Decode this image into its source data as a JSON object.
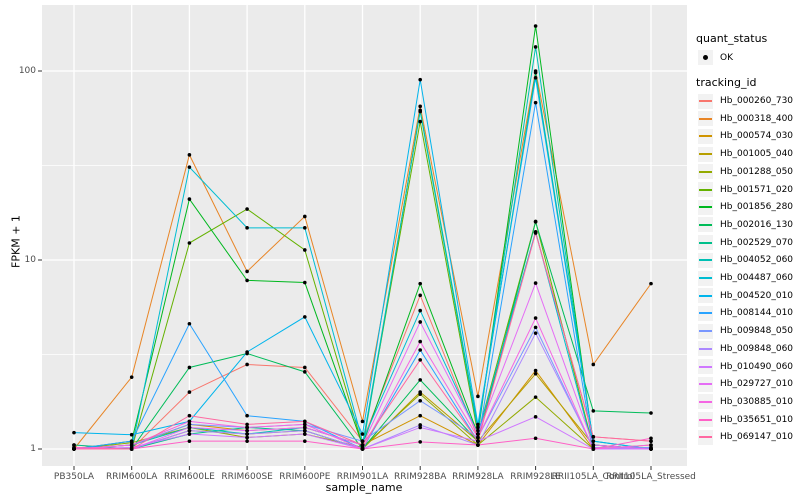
{
  "figure": {
    "y_axis_title": "FPKM + 1",
    "x_axis_title": "sample_name"
  },
  "legend": {
    "quant_status_title": "quant_status",
    "quant_status_items": [
      {
        "label": "OK",
        "marker": "black-point"
      }
    ],
    "tracking_id_title": "tracking_id"
  },
  "chart_data": {
    "type": "line",
    "title": "",
    "xlabel": "sample_name",
    "ylabel": "FPKM + 1",
    "y_scale": "log10",
    "ylim": [
      0.82,
      223
    ],
    "y_major_ticks": [
      {
        "label": "1",
        "value": 1
      },
      {
        "label": "10",
        "value": 10
      },
      {
        "label": "100",
        "value": 100
      }
    ],
    "y_minor_gridlines": [
      3.162,
      31.62
    ],
    "grid": "white-on-gray",
    "legend_position": "right",
    "point_marker": {
      "shape": "filled-circle",
      "color": "#000000",
      "meaning": "quant_status OK"
    },
    "categories": [
      "PB350LA",
      "RRIM600LA",
      "RRIM600LE",
      "RRIM600SE",
      "RRIM600PE",
      "RRIM901LA",
      "RRIM928BA",
      "RRIM928LA",
      "RRIM928LE",
      "RRII105LA_Control",
      "RRII105LA_Stressed"
    ],
    "series": [
      {
        "name": "Hb_000260_730",
        "color": "#F8766D",
        "values": [
          1.05,
          1.0,
          2.0,
          2.8,
          2.7,
          1.1,
          6.5,
          1.15,
          14.0,
          1.16,
          1.1
        ]
      },
      {
        "name": "Hb_000318_400",
        "color": "#E88526",
        "values": [
          1.0,
          2.4,
          36,
          8.7,
          17,
          1.4,
          65,
          1.9,
          100,
          2.8,
          7.5
        ]
      },
      {
        "name": "Hb_000574_030",
        "color": "#D09400",
        "values": [
          1.0,
          1.05,
          1.35,
          1.25,
          1.3,
          1.05,
          1.5,
          1.05,
          2.6,
          1.0,
          1.05
        ]
      },
      {
        "name": "Hb_001005_040",
        "color": "#B79F00",
        "values": [
          1.02,
          1.0,
          1.25,
          1.2,
          1.25,
          1.0,
          2.0,
          1.1,
          2.5,
          1.05,
          1.0
        ]
      },
      {
        "name": "Hb_001288_050",
        "color": "#93AA00",
        "values": [
          1.0,
          1.08,
          1.3,
          1.15,
          1.2,
          1.02,
          1.95,
          1.05,
          1.88,
          1.0,
          1.02
        ]
      },
      {
        "name": "Hb_001571_020",
        "color": "#64B200",
        "values": [
          1.0,
          1.0,
          12.3,
          18.6,
          11.3,
          1.05,
          54,
          1.2,
          16,
          1.02,
          1.0
        ]
      },
      {
        "name": "Hb_001856_280",
        "color": "#00B81F",
        "values": [
          1.0,
          1.1,
          21,
          7.8,
          7.6,
          1.05,
          7.5,
          1.2,
          173,
          1.05,
          1.0
        ]
      },
      {
        "name": "Hb_002016_130",
        "color": "#00BC59",
        "values": [
          1.0,
          1.0,
          2.7,
          3.2,
          2.56,
          1.0,
          2.32,
          1.1,
          15.9,
          1.59,
          1.55
        ]
      },
      {
        "name": "Hb_002529_070",
        "color": "#00C08B",
        "values": [
          1.05,
          1.0,
          1.2,
          1.3,
          1.25,
          1.0,
          62,
          1.3,
          98,
          1.1,
          1.0
        ]
      },
      {
        "name": "Hb_004052_060",
        "color": "#00C0B4",
        "values": [
          1.0,
          1.05,
          1.3,
          1.2,
          1.3,
          1.05,
          61,
          1.25,
          134,
          1.05,
          1.0
        ]
      },
      {
        "name": "Hb_004487_060",
        "color": "#00BDD2",
        "values": [
          1.0,
          1.0,
          31,
          14.8,
          14.8,
          1.1,
          5.4,
          1.2,
          14.1,
          1.0,
          1.0
        ]
      },
      {
        "name": "Hb_004520_010",
        "color": "#00B5EC",
        "values": [
          1.22,
          1.19,
          1.4,
          3.26,
          5.0,
          1.2,
          90,
          1.35,
          92,
          1.1,
          1.0
        ]
      },
      {
        "name": "Hb_008144_010",
        "color": "#29A3FF",
        "values": [
          1.0,
          1.1,
          4.6,
          1.5,
          1.4,
          1.0,
          3.34,
          1.1,
          68,
          1.0,
          1.0
        ]
      },
      {
        "name": "Hb_009848_050",
        "color": "#7997FF",
        "values": [
          1.0,
          1.05,
          1.35,
          1.3,
          1.35,
          1.1,
          1.8,
          1.15,
          4.4,
          1.0,
          1.02
        ]
      },
      {
        "name": "Hb_009848_060",
        "color": "#AC88FF",
        "values": [
          1.0,
          1.0,
          1.25,
          1.2,
          1.25,
          1.0,
          1.34,
          1.05,
          4.1,
          1.02,
          1.0
        ]
      },
      {
        "name": "Hb_010490_060",
        "color": "#CF78FF",
        "values": [
          1.0,
          1.02,
          1.2,
          1.15,
          1.2,
          1.0,
          1.3,
          1.1,
          1.48,
          1.0,
          1.0
        ]
      },
      {
        "name": "Hb_029727_010",
        "color": "#E56DF5",
        "values": [
          1.0,
          1.0,
          1.3,
          1.25,
          1.3,
          1.05,
          4.7,
          1.2,
          7.55,
          1.05,
          1.0
        ]
      },
      {
        "name": "Hb_030885_010",
        "color": "#F566E3",
        "values": [
          1.0,
          1.05,
          1.4,
          1.3,
          1.35,
          1.0,
          3.7,
          1.15,
          4.93,
          1.0,
          1.05
        ]
      },
      {
        "name": "Hb_035651_010",
        "color": "#FF61C7",
        "values": [
          1.02,
          1.0,
          1.1,
          1.1,
          1.1,
          1.0,
          1.09,
          1.05,
          1.14,
          1.0,
          1.14
        ]
      },
      {
        "name": "Hb_069147_010",
        "color": "#FF68A1",
        "values": [
          1.0,
          1.0,
          1.5,
          1.35,
          1.4,
          1.05,
          2.96,
          1.1,
          13.9,
          1.16,
          1.1
        ]
      }
    ]
  },
  "style": {
    "panel_bg": "#EBEBEB",
    "grid_color": "#FFFFFF",
    "tick_text_color": "#4D4D4D",
    "axis_tick_color": "#333333",
    "legend_key_bg": "#F2F2F2",
    "point_color": "#000000"
  }
}
